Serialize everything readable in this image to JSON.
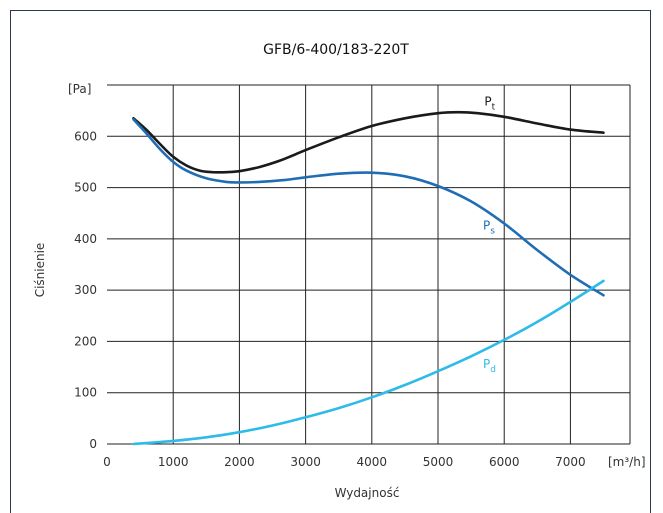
{
  "chart_data": {
    "type": "line",
    "title": "GFB/6-400/183-220T",
    "xlabel": "Wydajność",
    "ylabel": "Ciśnienie",
    "x_unit": "[m³/h]",
    "y_unit": "[Pa]",
    "xlim": [
      0,
      7900
    ],
    "ylim": [
      0,
      700
    ],
    "xticks": [
      0,
      1000,
      2000,
      3000,
      4000,
      5000,
      6000,
      7000
    ],
    "yticks": [
      0,
      100,
      200,
      300,
      400,
      500,
      600
    ],
    "grid": true,
    "series": [
      {
        "label_main": "P",
        "label_sub": "t",
        "label_at": [
          5700,
          660
        ],
        "color": "#1a1a1a",
        "x": [
          400,
          600,
          800,
          1000,
          1200,
          1400,
          1600,
          1800,
          2000,
          2300,
          2600,
          3000,
          3500,
          4000,
          4500,
          5000,
          5300,
          5600,
          6000,
          6500,
          7000,
          7500
        ],
        "y": [
          635,
          612,
          585,
          560,
          543,
          533,
          530,
          530,
          532,
          540,
          552,
          573,
          598,
          620,
          635,
          645,
          647,
          645,
          638,
          625,
          613,
          607
        ]
      },
      {
        "label_main": "P",
        "label_sub": "s",
        "label_at": [
          5680,
          418
        ],
        "color": "#1f6db5",
        "x": [
          400,
          600,
          800,
          1000,
          1200,
          1500,
          1800,
          2000,
          2300,
          2700,
          3000,
          3500,
          4000,
          4500,
          5000,
          5500,
          6000,
          6500,
          7000,
          7500
        ],
        "y": [
          633,
          605,
          575,
          550,
          533,
          518,
          511,
          510,
          511,
          515,
          520,
          527,
          529,
          522,
          503,
          473,
          430,
          378,
          330,
          290
        ]
      },
      {
        "label_main": "P",
        "label_sub": "d",
        "label_at": [
          5680,
          148
        ],
        "color": "#2ebbe8",
        "x": [
          400,
          1000,
          1500,
          2000,
          2500,
          3000,
          3500,
          4000,
          4500,
          5000,
          5500,
          6000,
          6500,
          7000,
          7500
        ],
        "y": [
          0,
          6,
          13,
          23,
          36,
          52,
          70,
          91,
          115,
          142,
          171,
          203,
          238,
          277,
          318
        ]
      }
    ]
  }
}
